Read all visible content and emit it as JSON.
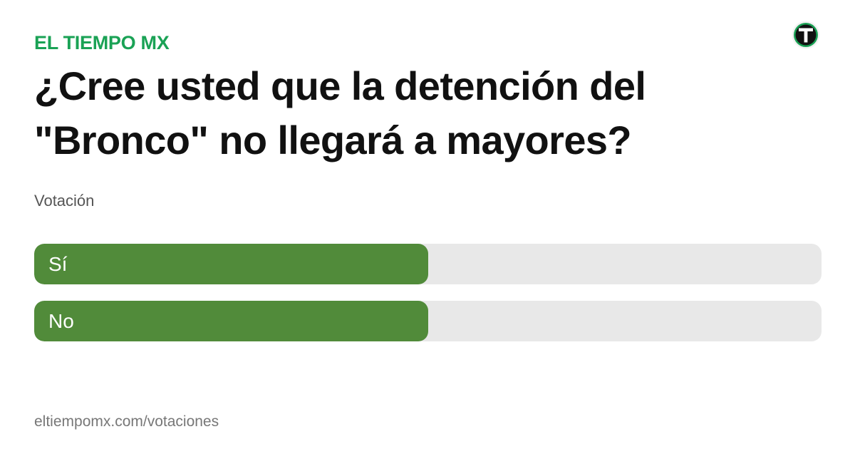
{
  "header": {
    "brand": "EL TIEMPO MX",
    "logo_icon": "el-tiempo-logo"
  },
  "poll": {
    "question": "¿Cree usted que la detención del \"Bronco\" no llegará a mayores?",
    "subtitle": "Votación",
    "options": [
      {
        "label": "Sí",
        "fraction": 0.5
      },
      {
        "label": "No",
        "fraction": 0.5
      }
    ]
  },
  "footer": {
    "url": "eltiempomx.com/votaciones"
  },
  "colors": {
    "brand": "#1aa255",
    "bar_fill": "#518b3a",
    "bar_track": "#e8e8e8"
  }
}
